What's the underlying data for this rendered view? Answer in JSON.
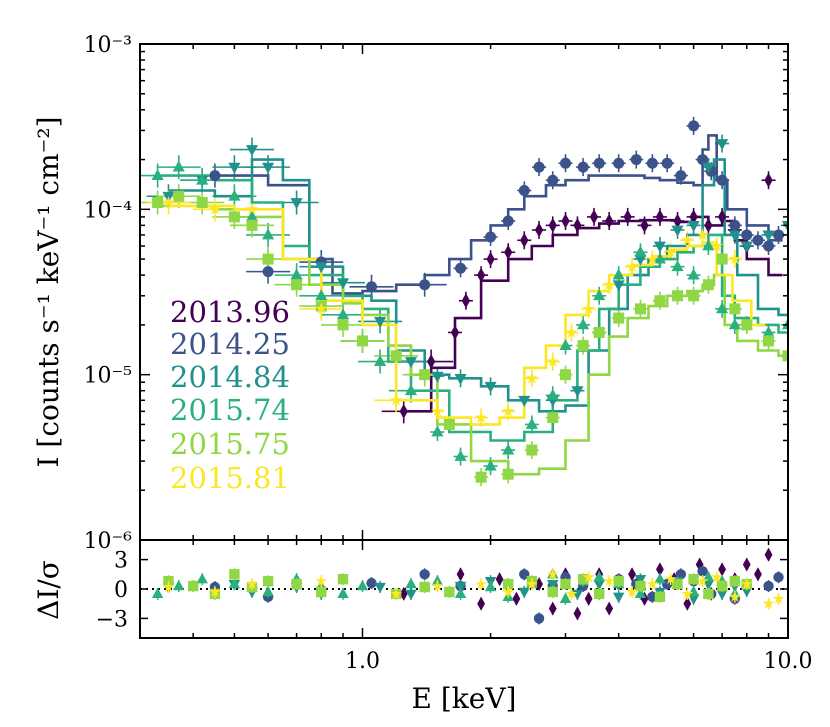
{
  "colors": {
    "2013.96": "#440154",
    "2014.25": "#3b528b",
    "2014.84": "#21918c",
    "2015.74": "#2ab07f",
    "2015.75": "#8fd744",
    "2015.81": "#fde725"
  },
  "chart_data": [
    {
      "type": "scatter",
      "panel": "spectrum",
      "xscale": "log",
      "yscale": "log",
      "xlim": [
        0.3,
        10.0
      ],
      "ylim": [
        1e-06,
        0.001
      ],
      "ylabel": "I [counts s⁻¹ keV⁻¹ cm⁻²]",
      "ytick_labels": [
        "10⁻³",
        "10⁻⁴",
        "10⁻⁵",
        "10⁻⁶"
      ],
      "legend_position": "center-left",
      "series": [
        {
          "name": "2013.96",
          "marker": "diamond",
          "x": [
            1.25,
            1.45,
            1.65,
            1.75,
            1.9,
            2.0,
            2.2,
            2.4,
            2.6,
            2.8,
            3.0,
            3.2,
            3.5,
            3.8,
            4.2,
            4.6,
            5.0,
            5.5,
            6.0,
            6.5,
            7.0,
            7.5,
            8.0,
            9.0
          ],
          "y": [
            6e-06,
            1.2e-05,
            1.8e-05,
            2.8e-05,
            4e-05,
            5e-05,
            5.5e-05,
            6.5e-05,
            7.5e-05,
            8e-05,
            8.5e-05,
            8e-05,
            9e-05,
            8.5e-05,
            9e-05,
            8e-05,
            9e-05,
            8.5e-05,
            9e-05,
            8e-05,
            9e-05,
            7.5e-05,
            6e-05,
            0.00015
          ],
          "model_x": [
            1.25,
            1.45,
            1.65,
            1.9,
            2.2,
            2.5,
            2.8,
            3.2,
            3.6,
            4.0,
            4.5,
            5.0,
            5.5,
            6.0,
            6.5,
            7.0,
            7.5,
            8.0,
            9.0
          ],
          "model_y": [
            6e-06,
            1.1e-05,
            2.2e-05,
            3.7e-05,
            5e-05,
            6e-05,
            7e-05,
            7.7e-05,
            8.2e-05,
            8.5e-05,
            8.6e-05,
            8.6e-05,
            8.4e-05,
            9e-05,
            8e-05,
            8.5e-05,
            6.5e-05,
            5e-05,
            4e-05
          ]
        },
        {
          "name": "2014.25",
          "marker": "circle",
          "x": [
            0.45,
            0.6,
            0.8,
            1.05,
            1.4,
            1.7,
            2.0,
            2.2,
            2.4,
            2.6,
            2.8,
            3.0,
            3.3,
            3.6,
            4.0,
            4.4,
            4.8,
            5.2,
            5.6,
            6.0,
            6.3,
            6.6,
            7.0,
            7.5,
            8.0,
            8.5,
            9.0,
            9.5
          ],
          "y": [
            0.00016,
            4.2e-05,
            4.8e-05,
            3.4e-05,
            3.5e-05,
            4.4e-05,
            6.8e-05,
            8.5e-05,
            0.00013,
            0.00018,
            0.00015,
            0.00019,
            0.00018,
            0.00019,
            0.00019,
            0.0002,
            0.00019,
            0.00019,
            0.00016,
            0.00032,
            0.0002,
            0.00017,
            0.00015,
            8e-05,
            7e-05,
            6.5e-05,
            6e-05,
            7e-05
          ],
          "model_x": [
            0.45,
            0.6,
            0.75,
            0.85,
            1.0,
            1.2,
            1.4,
            1.6,
            1.8,
            2.0,
            2.2,
            2.4,
            2.7,
            3.0,
            3.4,
            3.8,
            4.2,
            4.6,
            5.0,
            5.5,
            6.0,
            6.3,
            6.5,
            6.8,
            7.2,
            8.0,
            9.0
          ],
          "model_y": [
            0.00016,
            0.00014,
            5e-05,
            3.1e-05,
            3.2e-05,
            3.5e-05,
            4e-05,
            5e-05,
            6.5e-05,
            8e-05,
            0.0001,
            0.00012,
            0.00014,
            0.00015,
            0.00016,
            0.00016,
            0.00016,
            0.000155,
            0.00015,
            0.000145,
            0.00014,
            0.00023,
            0.00028,
            0.00015,
            0.0001,
            8e-05,
            6.5e-05
          ]
        },
        {
          "name": "2014.84",
          "marker": "triangle-down",
          "x": [
            0.35,
            0.42,
            0.5,
            0.55,
            0.6,
            0.7,
            0.8,
            0.9,
            1.1,
            1.3,
            1.5,
            1.7,
            2.0,
            2.4,
            2.8,
            3.2,
            3.6,
            4.0,
            4.5,
            5.0,
            5.5,
            6.0,
            6.5,
            7.0,
            7.5,
            8.0,
            9.0,
            10.0
          ],
          "y": [
            0.00012,
            0.00015,
            0.00018,
            0.00023,
            0.00018,
            0.00011,
            4.5e-05,
            3.6e-05,
            2.1e-05,
            1.2e-05,
            9.8e-06,
            9.5e-06,
            8.5e-06,
            7e-06,
            7e-06,
            8e-06,
            1.8e-05,
            3.5e-05,
            5e-05,
            6e-05,
            7.5e-05,
            8e-05,
            0.00018,
            0.00025,
            7e-05,
            6e-05,
            7e-05,
            8e-05
          ],
          "model_x": [
            0.35,
            0.45,
            0.55,
            0.65,
            0.75,
            0.9,
            1.05,
            1.2,
            1.4,
            1.6,
            1.9,
            2.2,
            2.6,
            3.0,
            3.4,
            3.8,
            4.2,
            4.7,
            5.2,
            5.8,
            6.3,
            6.7,
            7.1,
            7.6,
            8.5,
            9.5
          ],
          "model_y": [
            0.00013,
            0.00012,
            0.0002,
            0.00015,
            4.5e-05,
            3e-05,
            2.8e-05,
            1.4e-05,
            1e-05,
            9.5e-06,
            8.5e-06,
            7e-06,
            6e-06,
            6.5e-06,
            1.4e-05,
            2.5e-05,
            4e-05,
            5e-05,
            6e-05,
            7e-05,
            0.00014,
            0.0002,
            7e-05,
            4e-05,
            2.5e-05,
            2.3e-05
          ]
        },
        {
          "name": "2015.74",
          "marker": "triangle-up",
          "x": [
            0.33,
            0.37,
            0.42,
            0.5,
            0.55,
            0.6,
            0.7,
            0.8,
            0.9,
            1.0,
            1.1,
            1.3,
            1.5,
            1.7,
            2.0,
            2.2,
            2.5,
            2.8,
            3.0,
            3.3,
            3.6,
            4.0,
            4.5,
            5.0,
            5.5,
            6.0,
            6.5,
            7.0,
            7.5,
            8.0,
            9.0,
            10.0
          ],
          "y": [
            0.00016,
            0.00018,
            0.00015,
            0.00012,
            9e-05,
            7e-05,
            4e-05,
            3e-05,
            2.3e-05,
            1.6e-05,
            1.2e-05,
            8e-06,
            4.5e-06,
            3.2e-06,
            2.8e-06,
            3.5e-06,
            5e-06,
            7.5e-06,
            1.5e-05,
            2e-05,
            3e-05,
            4e-05,
            5.5e-05,
            5e-05,
            4.5e-05,
            4e-05,
            6e-05,
            2.5e-05,
            2e-05,
            2e-05,
            1.8e-05,
            2e-05
          ],
          "model_x": [
            0.33,
            0.45,
            0.55,
            0.65,
            0.75,
            0.9,
            1.0,
            1.15,
            1.3,
            1.6,
            2.0,
            2.4,
            2.8,
            3.2,
            3.6,
            4.0,
            4.5,
            5.0,
            5.5,
            6.0,
            6.5,
            7.0,
            7.5,
            8.5,
            9.5
          ],
          "model_y": [
            0.00016,
            0.00015,
            0.00011,
            6e-05,
            4e-05,
            3e-05,
            2.5e-05,
            1.2e-05,
            8e-06,
            4.5e-06,
            4e-06,
            4.5e-06,
            7e-06,
            1.4e-05,
            2.5e-05,
            3.5e-05,
            4.5e-05,
            5e-05,
            5.5e-05,
            6e-05,
            7e-05,
            3e-05,
            2.2e-05,
            2e-05,
            1.8e-05
          ]
        },
        {
          "name": "2015.75",
          "marker": "square",
          "x": [
            0.33,
            0.37,
            0.42,
            0.5,
            0.55,
            0.6,
            0.7,
            0.8,
            0.9,
            1.0,
            1.2,
            1.4,
            1.6,
            1.9,
            2.2,
            2.5,
            2.8,
            3.0,
            3.3,
            3.6,
            4.0,
            4.5,
            5.0,
            5.5,
            6.0,
            6.5,
            7.0,
            7.5,
            8.0,
            9.0,
            10.0
          ],
          "y": [
            0.00011,
            0.00012,
            0.00011,
            9e-05,
            8e-05,
            5e-05,
            3.5e-05,
            2.6e-05,
            2e-05,
            1.6e-05,
            1.3e-05,
            1e-05,
            5e-06,
            2.4e-06,
            2.5e-06,
            3.5e-06,
            5.5e-06,
            1e-05,
            1.5e-05,
            1.8e-05,
            2.2e-05,
            2.5e-05,
            2.8e-05,
            3e-05,
            3e-05,
            3.5e-05,
            5e-05,
            2.5e-05,
            2e-05,
            1.6e-05,
            1.3e-05
          ],
          "model_x": [
            0.33,
            0.45,
            0.55,
            0.65,
            0.75,
            0.9,
            1.0,
            1.15,
            1.3,
            1.5,
            1.8,
            2.2,
            2.6,
            3.0,
            3.4,
            3.8,
            4.2,
            4.7,
            5.2,
            5.8,
            6.3,
            6.7,
            7.1,
            7.6,
            8.5,
            9.5
          ],
          "model_y": [
            0.000105,
            0.0001,
            9e-05,
            5e-05,
            3.5e-05,
            2.7e-05,
            2.3e-05,
            1.5e-05,
            1e-05,
            5e-06,
            3e-06,
            2.5e-06,
            2.7e-06,
            4e-06,
            1e-05,
            1.7e-05,
            2.2e-05,
            2.6e-05,
            3e-05,
            3.2e-05,
            3.5e-05,
            4e-05,
            2e-05,
            1.6e-05,
            1.4e-05,
            1.3e-05
          ]
        },
        {
          "name": "2015.81",
          "marker": "star",
          "x": [
            0.35,
            0.45,
            0.55,
            0.8,
            1.2,
            1.5,
            1.9,
            2.2,
            2.5,
            2.8,
            3.1,
            3.4,
            3.8,
            4.3,
            4.8,
            5.3,
            5.8,
            6.3,
            6.8,
            7.5
          ],
          "y": [
            0.00011,
            0.0001,
            0.0001,
            2.5e-05,
            7e-06,
            6e-06,
            5.5e-06,
            6e-06,
            9.5e-06,
            1.2e-05,
            1.8e-05,
            2.5e-05,
            3.5e-05,
            4.5e-05,
            5e-05,
            5.5e-05,
            6.5e-05,
            7e-05,
            6e-05,
            5e-05
          ],
          "model_x": [
            0.35,
            0.5,
            0.65,
            0.8,
            1.0,
            1.2,
            1.5,
            1.8,
            2.1,
            2.4,
            2.7,
            3.0,
            3.4,
            3.8,
            4.3,
            4.8,
            5.3,
            5.8,
            6.3,
            6.8,
            7.4,
            8.2
          ],
          "model_y": [
            0.000105,
            0.0001,
            5e-05,
            2.8e-05,
            2e-05,
            7e-06,
            5.5e-06,
            5e-06,
            5.5e-06,
            1.1e-05,
            1.5e-05,
            2.3e-05,
            3.2e-05,
            4e-05,
            4.6e-05,
            5.2e-05,
            5.7e-05,
            6e-05,
            6.3e-05,
            4e-05,
            2.8e-05,
            2e-05
          ]
        }
      ]
    },
    {
      "type": "scatter",
      "panel": "residuals",
      "xscale": "log",
      "xlim": [
        0.3,
        10.0
      ],
      "ylim": [
        -5,
        5
      ],
      "yticks": [
        3,
        0,
        -3
      ],
      "ytick_labels": [
        "3",
        "0",
        "−3"
      ],
      "ylabel": "ΔI/σ",
      "xticks": [
        1.0,
        10.0
      ],
      "xtick_labels": [
        "1.0",
        "10.0"
      ],
      "xlabel": "E [keV]",
      "zero_line": "dotted",
      "series": [
        {
          "name": "2013.96",
          "marker": "diamond",
          "x": [
            1.25,
            1.7,
            1.9,
            2.1,
            2.3,
            2.6,
            2.8,
            3.0,
            3.2,
            3.4,
            3.6,
            3.8,
            4.0,
            4.3,
            4.6,
            5.0,
            5.4,
            5.8,
            6.2,
            6.6,
            7.0,
            7.5,
            8.0,
            8.5,
            9.0
          ],
          "y": [
            -0.5,
            1.5,
            -1.5,
            1.0,
            -1.0,
            0.5,
            -2.0,
            1.5,
            -2.5,
            -1.0,
            1.5,
            -2.0,
            0.5,
            1.5,
            -1.0,
            2.0,
            1.0,
            -1.5,
            2.5,
            -0.5,
            2.0,
            1.0,
            2.5,
            1.5,
            3.5
          ]
        },
        {
          "name": "2014.25",
          "marker": "circle",
          "x": [
            0.45,
            0.6,
            0.8,
            1.05,
            1.4,
            1.7,
            2.2,
            2.4,
            2.6,
            2.8,
            3.0,
            3.3,
            3.6,
            4.0,
            4.4,
            4.8,
            5.2,
            5.6,
            6.0,
            6.3,
            6.6,
            7.0,
            7.5,
            8.0,
            9.0,
            9.5
          ],
          "y": [
            0.2,
            -0.8,
            -0.3,
            0.6,
            1.5,
            0.3,
            0.5,
            1.5,
            -3.0,
            0.3,
            1.2,
            0.3,
            -0.5,
            1.0,
            0.5,
            -0.8,
            0.5,
            1.5,
            0.8,
            1.8,
            -0.5,
            0.2,
            -1.0,
            0.5,
            0.3,
            1.2
          ]
        },
        {
          "name": "2014.84",
          "marker": "triangle-down",
          "x": [
            0.35,
            0.5,
            0.55,
            0.7,
            0.8,
            1.1,
            1.3,
            1.7,
            2.0,
            2.4,
            2.8,
            3.2,
            3.6,
            4.0,
            4.5,
            5.0,
            5.5,
            6.0,
            6.5,
            7.0,
            7.5,
            8.0
          ],
          "y": [
            0.2,
            0.5,
            -0.3,
            0.2,
            -0.5,
            0.2,
            -0.5,
            0.3,
            0.8,
            -0.3,
            0.5,
            -0.5,
            0.5,
            -0.8,
            1.0,
            -0.3,
            0.8,
            -1.0,
            0.5,
            -0.5,
            0.3,
            -0.2
          ]
        },
        {
          "name": "2015.74",
          "marker": "triangle-up",
          "x": [
            0.33,
            0.37,
            0.42,
            0.5,
            0.6,
            0.7,
            0.8,
            0.9,
            1.0,
            1.3,
            1.5,
            1.7,
            2.0,
            2.2,
            2.5,
            2.8,
            3.0,
            3.3,
            3.6,
            4.0,
            4.5,
            5.0,
            5.5,
            6.0,
            6.5,
            7.0,
            7.5,
            8.0
          ],
          "y": [
            -0.5,
            0.3,
            1.0,
            0.5,
            -0.3,
            1.0,
            0.3,
            -0.5,
            0.3,
            0.5,
            0.8,
            -0.5,
            0.2,
            -0.8,
            0.5,
            1.5,
            -1.0,
            0.8,
            1.2,
            0.5,
            -0.5,
            1.0,
            0.5,
            -0.3,
            1.2,
            0.8,
            -0.5,
            0.5
          ]
        },
        {
          "name": "2015.75",
          "marker": "square",
          "x": [
            0.35,
            0.4,
            0.45,
            0.5,
            0.55,
            0.6,
            0.7,
            0.8,
            0.9,
            1.2,
            1.4,
            1.6,
            2.2,
            2.5,
            2.8,
            3.0,
            3.3,
            3.6,
            4.0,
            4.5,
            5.0,
            5.5,
            6.0,
            6.5,
            7.0,
            7.5,
            8.0
          ],
          "y": [
            0.8,
            0.3,
            -0.5,
            1.5,
            0.2,
            0.8,
            0.5,
            -0.3,
            1.0,
            -0.5,
            0.2,
            -0.3,
            0.5,
            0.8,
            -0.3,
            0.5,
            1.0,
            -0.5,
            0.8,
            0.3,
            -0.8,
            0.5,
            1.0,
            -0.5,
            0.3,
            0.8,
            0.5
          ]
        },
        {
          "name": "2015.81",
          "marker": "star",
          "x": [
            0.35,
            0.45,
            0.55,
            0.8,
            1.2,
            1.5,
            1.9,
            2.2,
            2.5,
            2.8,
            3.1,
            3.4,
            3.8,
            4.3,
            4.8,
            5.3,
            5.8,
            6.3,
            6.8,
            7.5,
            8.0,
            9.0,
            9.5
          ],
          "y": [
            0.2,
            -0.3,
            0.5,
            0.8,
            -0.5,
            0.3,
            0.5,
            -0.3,
            0.5,
            1.5,
            -0.5,
            1.2,
            0.8,
            -0.3,
            0.5,
            1.0,
            -0.5,
            0.8,
            1.2,
            -0.8,
            0.5,
            -1.5,
            -1.0
          ]
        }
      ]
    }
  ]
}
